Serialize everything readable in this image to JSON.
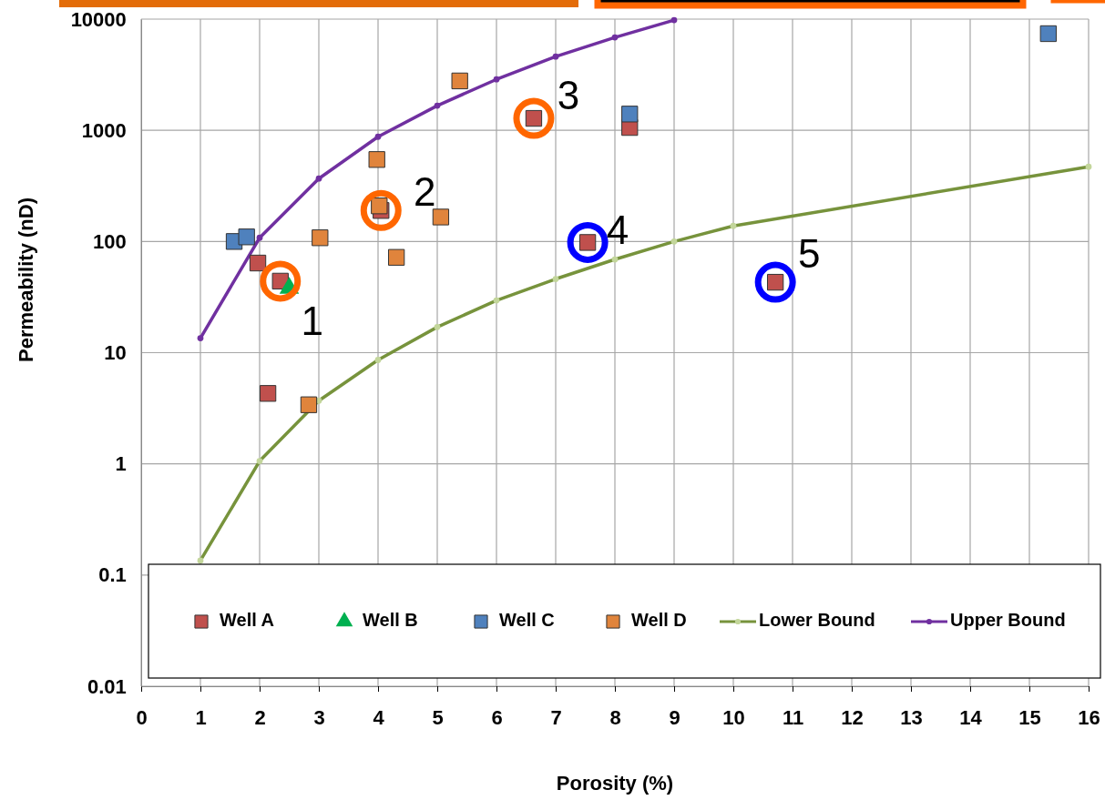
{
  "chart_data": {
    "type": "scatter",
    "xlabel": "Porosity (%)",
    "ylabel": "Permeability (nD)",
    "xlim": [
      0,
      16
    ],
    "xticks": [
      0,
      1,
      2,
      3,
      4,
      5,
      6,
      7,
      8,
      9,
      10,
      11,
      12,
      13,
      14,
      15,
      16
    ],
    "ylim": [
      0.01,
      10000
    ],
    "yticks": [
      0.01,
      0.1,
      1,
      10,
      100,
      1000,
      10000
    ],
    "log": "y",
    "grid": true,
    "legend": "bottom",
    "series": [
      {
        "name": "Well A",
        "marker": "square",
        "color": "#c0504d",
        "x": [
          1.97,
          2.35,
          2.14,
          4.05,
          6.63,
          8.25,
          7.54,
          10.71
        ],
        "values": [
          64,
          44,
          4.3,
          190,
          1280,
          1060,
          98,
          43
        ]
      },
      {
        "name": "Well B",
        "marker": "triangle",
        "color": "#00b050",
        "x": [
          2.5
        ],
        "values": [
          38
        ]
      },
      {
        "name": "Well C",
        "marker": "square",
        "color": "#4f81bd",
        "x": [
          1.57,
          1.78,
          8.25,
          15.32
        ],
        "values": [
          100,
          110,
          1400,
          7400
        ]
      },
      {
        "name": "Well D",
        "marker": "square",
        "color": "#e0843c",
        "x": [
          5.38,
          3.98,
          4.02,
          5.06,
          3.02,
          4.31,
          2.83
        ],
        "values": [
          2780,
          546,
          209,
          166,
          108,
          72,
          3.4
        ]
      },
      {
        "name": "Lower Bound",
        "type": "line",
        "marker": "circle",
        "color": "#77933c",
        "x": [
          1,
          2,
          3,
          4,
          5,
          6,
          7,
          8,
          9,
          10,
          16
        ],
        "values": [
          0.135,
          1.06,
          3.7,
          8.6,
          17,
          29.5,
          46,
          69,
          100,
          138,
          470
        ]
      },
      {
        "name": "Upper Bound",
        "type": "line",
        "marker": "circle",
        "color": "#7030a0",
        "x": [
          1,
          2,
          3,
          4,
          5,
          6,
          7,
          8,
          9
        ],
        "values": [
          13.5,
          108,
          368,
          875,
          1665,
          2870,
          4600,
          6850,
          9800
        ]
      }
    ],
    "annotations": [
      "1",
      "2",
      "3",
      "4",
      "5"
    ]
  }
}
